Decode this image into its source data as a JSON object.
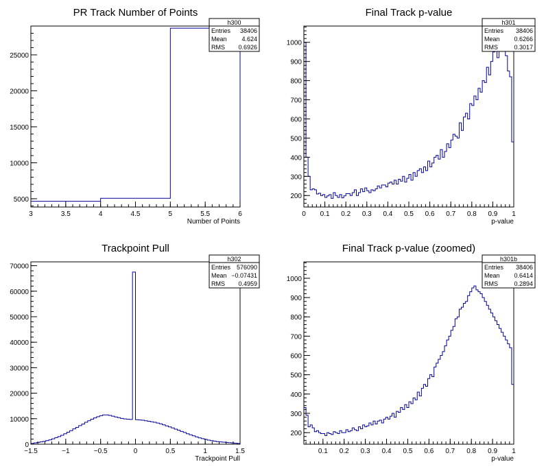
{
  "chart_data": [
    {
      "type": "histogram",
      "title": "PR Track Number of Points",
      "xlabel": "Number of Points",
      "xlim": [
        3,
        6
      ],
      "ylim": [
        3850,
        29000
      ],
      "xticks": [
        "3",
        "3.5",
        "4",
        "4.5",
        "5",
        "5.5",
        "6"
      ],
      "yticks": [
        "5000",
        "10000",
        "15000",
        "20000",
        "25000"
      ],
      "bins": [
        [
          3,
          4,
          4650
        ],
        [
          4,
          5,
          5060
        ],
        [
          5,
          6,
          28700
        ]
      ],
      "stats": {
        "name": "h300",
        "rows": [
          [
            "Entries",
            "38406"
          ],
          [
            "Mean",
            "4.624"
          ],
          [
            "RMS",
            "0.6926"
          ]
        ]
      }
    },
    {
      "type": "histogram",
      "title": "Final Track p-value",
      "xlabel": "p-value",
      "xlim": [
        0,
        1
      ],
      "ylim": [
        140,
        1085
      ],
      "xticks": [
        "0",
        "0.1",
        "0.2",
        "0.3",
        "0.4",
        "0.5",
        "0.6",
        "0.7",
        "0.8",
        "0.9",
        "1"
      ],
      "yticks": [
        "200",
        "300",
        "400",
        "500",
        "600",
        "700",
        "800",
        "900",
        "1000"
      ],
      "values": [
        1000,
        400,
        300,
        230,
        235,
        230,
        208,
        212,
        200,
        205,
        190,
        198,
        205,
        185,
        215,
        200,
        190,
        205,
        188,
        198,
        210,
        210,
        200,
        215,
        230,
        200,
        215,
        235,
        220,
        240,
        225,
        215,
        230,
        225,
        235,
        250,
        240,
        255,
        255,
        245,
        265,
        270,
        260,
        280,
        260,
        285,
        275,
        300,
        270,
        290,
        310,
        280,
        320,
        300,
        330,
        340,
        320,
        350,
        330,
        380,
        350,
        370,
        400,
        410,
        390,
        440,
        400,
        430,
        470,
        450,
        490,
        520,
        510,
        500,
        580,
        540,
        610,
        630,
        600,
        680,
        670,
        720,
        700,
        760,
        740,
        800,
        790,
        870,
        830,
        900,
        950,
        960,
        920,
        970,
        1040,
        1000,
        930,
        850,
        820,
        480
      ],
      "stats": {
        "name": "h301",
        "rows": [
          [
            "Entries",
            "38406"
          ],
          [
            "Mean",
            "0.6266"
          ],
          [
            "RMS",
            "0.3017"
          ]
        ]
      }
    },
    {
      "type": "histogram",
      "title": "Trackpoint Pull",
      "xlabel": "Trackpoint Pull",
      "xlim": [
        -1.5,
        1.5
      ],
      "ylim": [
        0,
        71500
      ],
      "xticks": [
        "−1.5",
        "−1",
        "−0.5",
        "0",
        "0.5",
        "1",
        "1.5"
      ],
      "yticks": [
        "0",
        "10000",
        "20000",
        "30000",
        "40000",
        "50000",
        "60000",
        "70000"
      ],
      "values": [
        300,
        500,
        700,
        900,
        1100,
        1400,
        1700,
        2100,
        2600,
        3000,
        3500,
        4100,
        4700,
        5300,
        6000,
        6600,
        7300,
        7900,
        8600,
        9200,
        9800,
        10300,
        10800,
        11200,
        11500,
        11500,
        11300,
        11000,
        10700,
        10400,
        10100,
        9900,
        9800,
        9700,
        67500,
        9600,
        9500,
        9400,
        9200,
        9000,
        8800,
        8600,
        8300,
        8000,
        7600,
        7200,
        6800,
        6400,
        5900,
        5500,
        5000,
        4600,
        4100,
        3700,
        3300,
        2900,
        2500,
        2200,
        1900,
        1600,
        1400,
        1200,
        1000,
        900,
        800,
        700,
        600,
        500,
        400,
        300
      ],
      "stats": {
        "name": "h302",
        "rows": [
          [
            "Entries",
            "576090"
          ],
          [
            "Mean",
            "−0.07431"
          ],
          [
            "RMS",
            "0.4959"
          ]
        ]
      }
    },
    {
      "type": "histogram",
      "title": "Final Track p-value (zoomed)",
      "xlabel": "p-value",
      "xlim": [
        0.01,
        1
      ],
      "ylim": [
        140,
        1085
      ],
      "xticks": [
        "0.1",
        "0.2",
        "0.3",
        "0.4",
        "0.5",
        "0.6",
        "0.7",
        "0.8",
        "0.9",
        "1"
      ],
      "yticks": [
        "200",
        "300",
        "400",
        "500",
        "600",
        "700",
        "800",
        "900",
        "1000"
      ],
      "values": [
        330,
        290,
        230,
        240,
        225,
        205,
        210,
        200,
        195,
        195,
        185,
        200,
        195,
        190,
        205,
        200,
        195,
        210,
        200,
        200,
        215,
        205,
        210,
        225,
        215,
        210,
        230,
        220,
        240,
        230,
        235,
        250,
        240,
        260,
        245,
        260,
        265,
        250,
        270,
        280,
        270,
        285,
        300,
        280,
        310,
        305,
        330,
        320,
        345,
        330,
        360,
        350,
        380,
        370,
        410,
        390,
        430,
        450,
        440,
        480,
        500,
        490,
        540,
        560,
        580,
        600,
        620,
        650,
        680,
        700,
        730,
        750,
        790,
        800,
        840,
        850,
        870,
        880,
        910,
        930,
        950,
        960,
        940,
        930,
        920,
        900,
        880,
        860,
        840,
        820,
        800,
        780,
        760,
        740,
        720,
        700,
        680,
        660,
        640,
        450
      ],
      "stats": {
        "name": "h301b",
        "rows": [
          [
            "Entries",
            "38406"
          ],
          [
            "Mean",
            "0.6414"
          ],
          [
            "RMS",
            "0.2894"
          ]
        ]
      }
    }
  ]
}
